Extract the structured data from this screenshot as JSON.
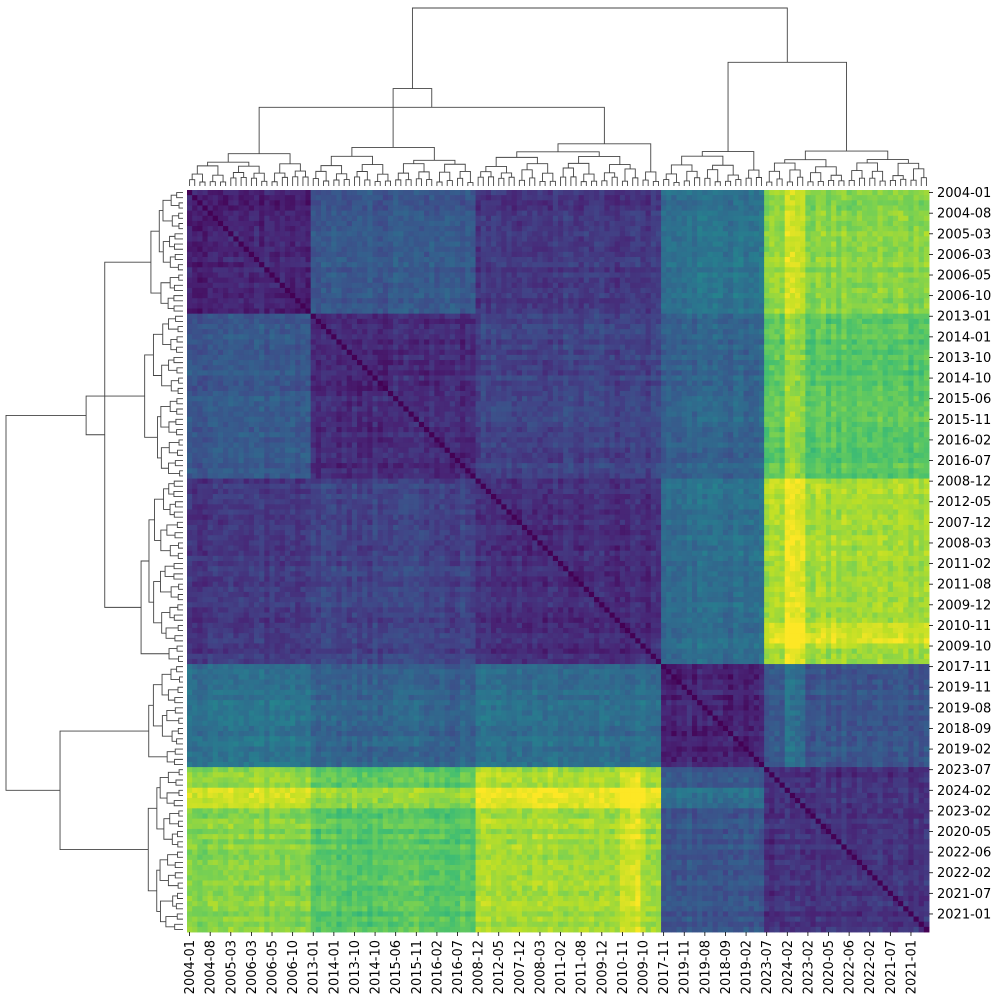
{
  "chart_data": {
    "type": "heatmap",
    "title": "",
    "xlabel": "",
    "ylabel": "",
    "colormap": "viridis",
    "diagonal_value": 0,
    "tick_labels": [
      "2004-01",
      "2004-08",
      "2005-03",
      "2006-03",
      "2006-05",
      "2006-10",
      "2013-01",
      "2014-01",
      "2013-10",
      "2014-10",
      "2015-06",
      "2015-11",
      "2016-02",
      "2016-07",
      "2008-12",
      "2012-05",
      "2007-12",
      "2008-03",
      "2011-02",
      "2011-08",
      "2009-12",
      "2010-11",
      "2009-10",
      "2017-11",
      "2019-11",
      "2019-08",
      "2018-09",
      "2019-02",
      "2023-07",
      "2024-02",
      "2023-02",
      "2020-05",
      "2022-06",
      "2022-02",
      "2021-07",
      "2021-01"
    ],
    "clusters": [
      {
        "span": [
          0,
          6
        ]
      },
      {
        "span": [
          6,
          14
        ]
      },
      {
        "span": [
          14,
          23
        ]
      },
      {
        "span": [
          23,
          28
        ]
      },
      {
        "span": [
          28,
          36
        ]
      }
    ],
    "cluster_distance_matrix": [
      [
        0.1,
        0.28,
        0.16,
        0.38,
        0.82
      ],
      [
        0.28,
        0.12,
        0.2,
        0.32,
        0.74
      ],
      [
        0.16,
        0.2,
        0.12,
        0.36,
        0.86
      ],
      [
        0.38,
        0.32,
        0.36,
        0.1,
        0.26
      ],
      [
        0.82,
        0.74,
        0.86,
        0.26,
        0.14
      ]
    ],
    "row_highlights": [
      {
        "index": 29,
        "extra_vs_cluster_0_3": 0.1
      },
      {
        "index": 21,
        "extra_vs_cluster_4": 0.08
      }
    ],
    "colors": {
      "viridis_low": "#440154",
      "viridis_mid": "#21918c",
      "viridis_high": "#fde725",
      "dendrogram_line": "#444444"
    }
  }
}
